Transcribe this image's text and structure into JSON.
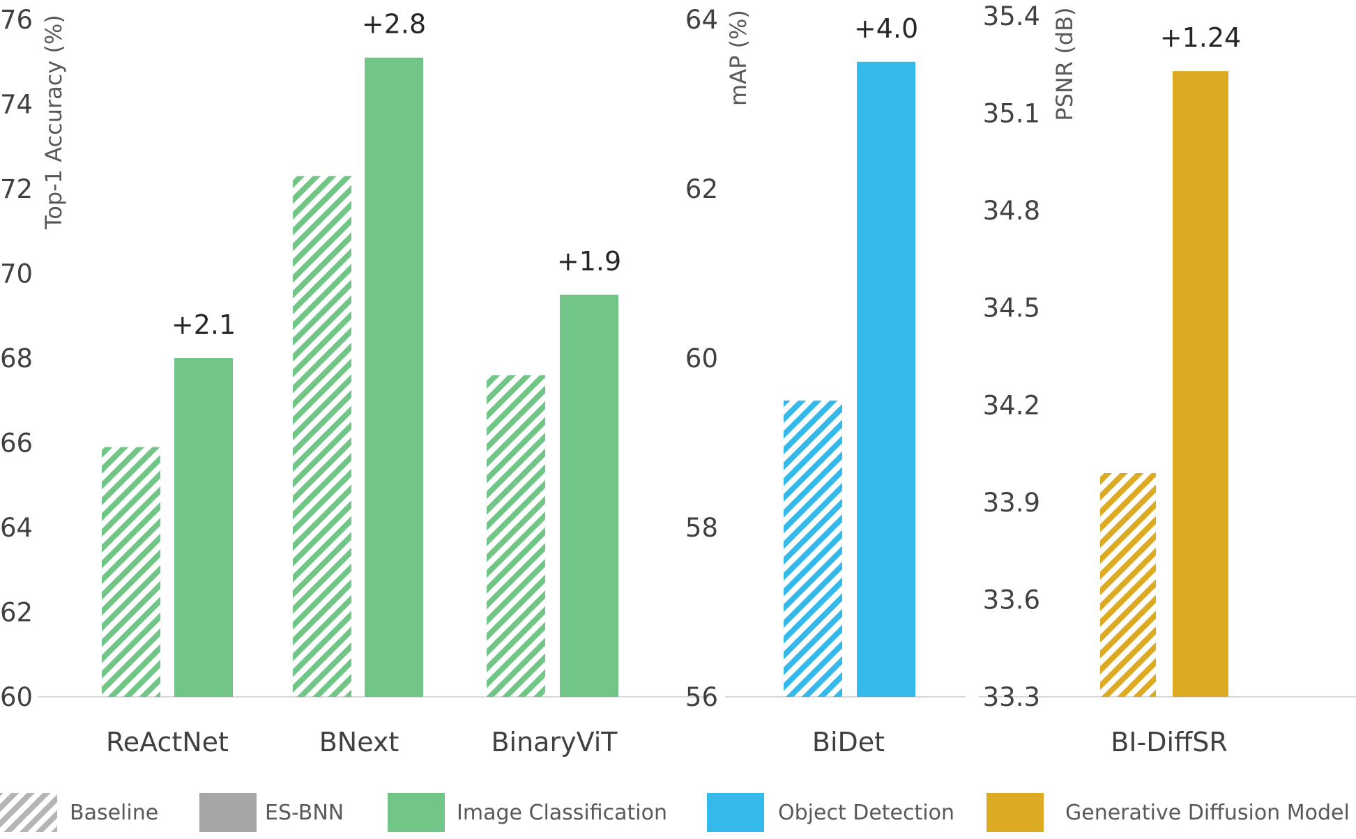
{
  "chart_data": [
    {
      "type": "bar",
      "ylabel": "Top-1 Accuracy (%)",
      "ylim": [
        60,
        76
      ],
      "yticks": [
        "60",
        "62",
        "64",
        "66",
        "68",
        "70",
        "72",
        "74",
        "76"
      ],
      "categories": [
        "ReActNet",
        "BNext",
        "BinaryViT"
      ],
      "series": [
        {
          "name": "Baseline",
          "values": [
            65.9,
            72.3,
            67.6
          ]
        },
        {
          "name": "ES-BNN",
          "values": [
            68.0,
            75.1,
            69.5
          ]
        }
      ],
      "deltas": [
        "+2.1",
        "+2.8",
        "+1.9"
      ],
      "color": "#71c687"
    },
    {
      "type": "bar",
      "ylabel": "mAP (%)",
      "ylim": [
        56,
        64
      ],
      "yticks": [
        "56",
        "58",
        "60",
        "62",
        "64"
      ],
      "categories": [
        "BiDet"
      ],
      "series": [
        {
          "name": "Baseline",
          "values": [
            59.5
          ]
        },
        {
          "name": "ES-BNN",
          "values": [
            63.5
          ]
        }
      ],
      "deltas": [
        "+4.0"
      ],
      "color": "#35b9ea"
    },
    {
      "type": "bar",
      "ylabel": "PSNR (dB)",
      "ylim": [
        33.3,
        35.4
      ],
      "yticks": [
        "33.3",
        "33.6",
        "33.9",
        "34.2",
        "34.5",
        "34.8",
        "35.1",
        "35.4"
      ],
      "categories": [
        "BI-DiffSR"
      ],
      "series": [
        {
          "name": "Baseline",
          "values": [
            33.99
          ]
        },
        {
          "name": "ES-BNN",
          "values": [
            35.23
          ]
        }
      ],
      "deltas": [
        "+1.24"
      ],
      "color": "#ddab23"
    }
  ],
  "legend": [
    {
      "label": "Baseline",
      "style": "hatch",
      "color": "#b5b5b5"
    },
    {
      "label": "ES-BNN",
      "style": "solid",
      "color": "#a6a6a6"
    },
    {
      "label": "Image Classification",
      "style": "solid",
      "color": "#71c687"
    },
    {
      "label": "Object Detection",
      "style": "solid",
      "color": "#35b9ea"
    },
    {
      "label": "Generative Diffusion Model",
      "style": "solid",
      "color": "#ddab23"
    }
  ]
}
